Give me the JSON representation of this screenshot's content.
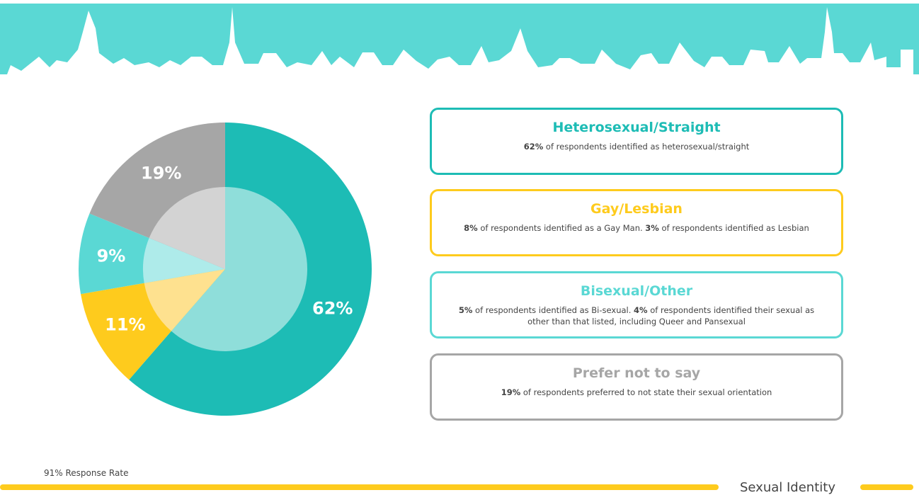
{
  "chart_data": {
    "type": "pie",
    "categories": [
      "Heterosexual/Straight",
      "Gay/Lesbian",
      "Bisexual/Other",
      "Prefer not to say"
    ],
    "values": [
      62,
      11,
      9,
      19
    ],
    "value_labels": [
      "62%",
      "11%",
      "9%",
      "19%"
    ],
    "colors": [
      "#1dbcb5",
      "#fecb1d",
      "#5ad8d4",
      "#a6a6a6"
    ],
    "inner_colors": [
      "#8fdeda",
      "#fee18f",
      "#aeebea",
      "#d3d3d3"
    ]
  },
  "cards": [
    {
      "title": "Heterosexual/Straight",
      "color": "#1dbcb5",
      "body": [
        {
          "text": "62%",
          "strong": true
        },
        {
          "text": " of respondents identified as heterosexual/straight"
        }
      ]
    },
    {
      "title": "Gay/Lesbian",
      "color": "#fecb1d",
      "body": [
        {
          "text": "8%",
          "strong": true
        },
        {
          "text": " of respondents identified as a Gay Man.  "
        },
        {
          "text": "3%",
          "strong": true
        },
        {
          "text": " of respondents identified as Lesbian"
        }
      ]
    },
    {
      "title": "Bisexual/Other",
      "color": "#5ad8d4",
      "body": [
        {
          "text": "5%",
          "strong": true
        },
        {
          "text": " of respondents identified as Bi-sexual.  "
        },
        {
          "text": "4%",
          "strong": true
        },
        {
          "text": " of respondents identified their sexual as other than that listed, including Queer and Pansexual"
        }
      ]
    },
    {
      "title": "Prefer not to say",
      "color": "#a6a6a6",
      "body": [
        {
          "text": "19%",
          "strong": true
        },
        {
          "text": " of respondents preferred to not state their sexual orientation"
        }
      ]
    }
  ],
  "footer": {
    "note": "91% Response Rate",
    "section": "Sexual Identity"
  }
}
